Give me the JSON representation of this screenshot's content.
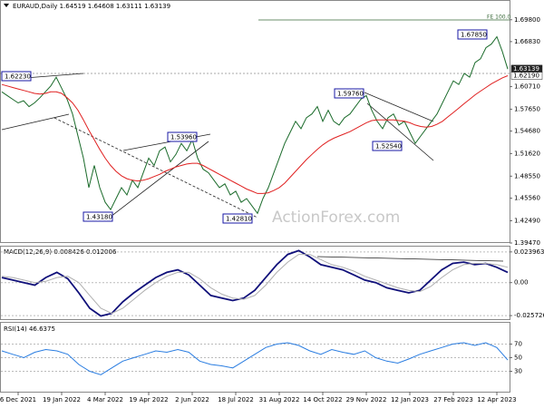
{
  "chart_data": [
    {
      "type": "line",
      "title": "EURAUD,Daily  1.64519 1.64608 1.63111 1.63139",
      "ylim": [
        1.3947,
        1.7236
      ],
      "yticks": [
        {
          "value": 1.698,
          "label": "1.69800"
        },
        {
          "value": 1.6683,
          "label": "1.66830"
        },
        {
          "value": 1.6071,
          "label": "1.60710"
        },
        {
          "value": 1.5765,
          "label": "1.57650"
        },
        {
          "value": 1.5468,
          "label": "1.54680"
        },
        {
          "value": 1.5162,
          "label": "1.51620"
        },
        {
          "value": 1.4855,
          "label": "1.48550"
        },
        {
          "value": 1.4556,
          "label": "1.45560"
        },
        {
          "value": 1.4249,
          "label": "1.42490"
        },
        {
          "value": 1.3947,
          "label": "1.39470"
        }
      ],
      "xticks": [
        {
          "value": 3,
          "label": "6 Dec 2021"
        },
        {
          "value": 11,
          "label": "19 Jan 2022"
        },
        {
          "value": 19,
          "label": "4 Mar 2022"
        },
        {
          "value": 27,
          "label": "19 Apr 2022"
        },
        {
          "value": 35,
          "label": "2 Jun 2022"
        },
        {
          "value": 43,
          "label": "18 Jul 2022"
        },
        {
          "value": 51,
          "label": "31 Aug 2022"
        },
        {
          "value": 59,
          "label": "14 Oct 2022"
        },
        {
          "value": 67,
          "label": "29 Nov 2022"
        },
        {
          "value": 75,
          "label": "12 Jan 2023"
        },
        {
          "value": 83,
          "label": "27 Feb 2023"
        },
        {
          "value": 91,
          "label": "12 Apr 2023"
        }
      ],
      "series": [
        {
          "name": "EURAUD",
          "color": "#1b6b2b",
          "values": [
            1.6,
            1.595,
            1.59,
            1.585,
            1.588,
            1.58,
            1.585,
            1.592,
            1.6,
            1.608,
            1.62,
            1.605,
            1.59,
            1.57,
            1.54,
            1.51,
            1.47,
            1.5,
            1.47,
            1.45,
            1.44,
            1.455,
            1.47,
            1.46,
            1.48,
            1.47,
            1.49,
            1.51,
            1.5,
            1.52,
            1.525,
            1.505,
            1.515,
            1.53,
            1.52,
            1.535,
            1.51,
            1.495,
            1.49,
            1.48,
            1.47,
            1.475,
            1.46,
            1.465,
            1.45,
            1.455,
            1.445,
            1.435,
            1.455,
            1.47,
            1.49,
            1.51,
            1.53,
            1.545,
            1.56,
            1.55,
            1.565,
            1.57,
            1.58,
            1.56,
            1.575,
            1.56,
            1.555,
            1.565,
            1.57,
            1.58,
            1.59,
            1.595,
            1.575,
            1.56,
            1.55,
            1.565,
            1.57,
            1.555,
            1.56,
            1.545,
            1.53,
            1.54,
            1.55,
            1.56,
            1.57,
            1.585,
            1.6,
            1.615,
            1.61,
            1.625,
            1.62,
            1.64,
            1.645,
            1.66,
            1.665,
            1.675,
            1.655,
            1.631
          ]
        },
        {
          "name": "SMA",
          "color": "#e02020",
          "values": [
            1.61,
            1.608,
            1.606,
            1.604,
            1.602,
            1.6,
            1.598,
            1.597,
            1.598,
            1.6,
            1.6,
            1.598,
            1.592,
            1.585,
            1.575,
            1.562,
            1.548,
            1.535,
            1.522,
            1.51,
            1.5,
            1.492,
            1.486,
            1.482,
            1.48,
            1.479,
            1.48,
            1.482,
            1.485,
            1.488,
            1.492,
            1.495,
            1.498,
            1.5,
            1.502,
            1.503,
            1.503,
            1.5,
            1.496,
            1.492,
            1.488,
            1.484,
            1.48,
            1.476,
            1.472,
            1.468,
            1.465,
            1.462,
            1.462,
            1.463,
            1.466,
            1.47,
            1.476,
            1.484,
            1.492,
            1.5,
            1.508,
            1.515,
            1.522,
            1.528,
            1.533,
            1.537,
            1.54,
            1.543,
            1.546,
            1.55,
            1.554,
            1.558,
            1.561,
            1.562,
            1.562,
            1.562,
            1.562,
            1.561,
            1.56,
            1.558,
            1.555,
            1.553,
            1.552,
            1.553,
            1.556,
            1.56,
            1.566,
            1.572,
            1.578,
            1.584,
            1.59,
            1.596,
            1.601,
            1.606,
            1.611,
            1.615,
            1.619,
            1.622
          ]
        }
      ],
      "last_price": {
        "value": 1.63139,
        "label": "1.63139"
      },
      "sma_last": {
        "value": 1.6219,
        "label": "1.62190"
      },
      "annotations": [
        "1.62230",
        "1.53960",
        "1.43180",
        "1.42810",
        "1.59760",
        "1.52540",
        "1.67850"
      ],
      "fe_label": "FE 100.0",
      "watermark": "ActionForex.com"
    },
    {
      "type": "line",
      "title": "MACD(12,26,9) 0.008426 0.012006",
      "ylim": [
        -0.0285,
        0.0281
      ],
      "yticks": [
        0.023963,
        {
          "value": 0,
          "label": "0.00"
        },
        -0.025726
      ],
      "series": [
        {
          "name": "MACD",
          "color": "#10107a",
          "values": [
            0.004,
            0.002,
            0.0,
            -0.002,
            0.004,
            0.008,
            0.003,
            -0.008,
            -0.02,
            -0.026,
            -0.024,
            -0.015,
            -0.008,
            -0.002,
            0.004,
            0.008,
            0.01,
            0.006,
            -0.002,
            -0.01,
            -0.012,
            -0.014,
            -0.012,
            -0.006,
            0.004,
            0.014,
            0.022,
            0.025,
            0.02,
            0.014,
            0.012,
            0.01,
            0.006,
            0.002,
            0.0,
            -0.004,
            -0.006,
            -0.008,
            -0.006,
            0.002,
            0.01,
            0.015,
            0.016,
            0.014,
            0.015,
            0.012,
            0.008
          ]
        },
        {
          "name": "Signal",
          "color": "#b0b0b0",
          "values": [
            0.005,
            0.004,
            0.002,
            0.0,
            0.001,
            0.004,
            0.005,
            0.0,
            -0.01,
            -0.02,
            -0.024,
            -0.02,
            -0.013,
            -0.006,
            0.0,
            0.005,
            0.008,
            0.008,
            0.003,
            -0.004,
            -0.009,
            -0.012,
            -0.013,
            -0.01,
            -0.002,
            0.008,
            0.016,
            0.022,
            0.022,
            0.018,
            0.014,
            0.012,
            0.009,
            0.005,
            0.002,
            -0.001,
            -0.004,
            -0.006,
            -0.007,
            -0.003,
            0.004,
            0.01,
            0.014,
            0.015,
            0.015,
            0.014,
            0.012
          ]
        }
      ]
    },
    {
      "type": "line",
      "title": "RSI(14) 46.6375",
      "ylim": [
        0,
        100
      ],
      "yticks": [
        70,
        50,
        30
      ],
      "series": [
        {
          "name": "RSI",
          "color": "#2a7de1",
          "values": [
            60,
            55,
            50,
            58,
            62,
            60,
            55,
            40,
            30,
            25,
            35,
            45,
            50,
            55,
            60,
            58,
            62,
            58,
            45,
            40,
            38,
            35,
            45,
            55,
            65,
            70,
            72,
            68,
            60,
            55,
            62,
            58,
            55,
            60,
            50,
            45,
            42,
            48,
            55,
            60,
            65,
            70,
            72,
            68,
            72,
            65,
            46.6
          ]
        }
      ]
    }
  ]
}
